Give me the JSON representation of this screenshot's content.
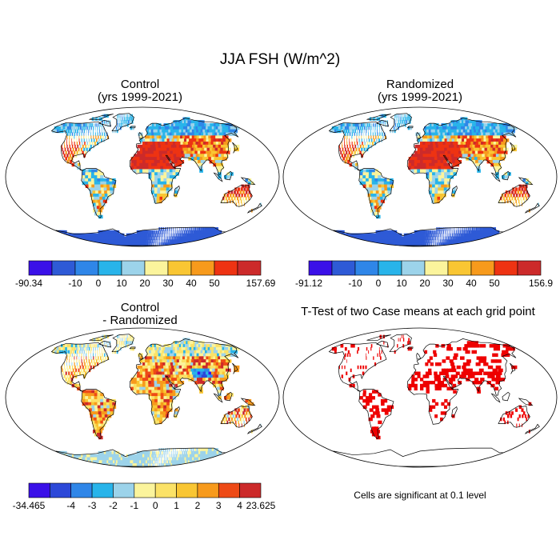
{
  "title": "JJA FSH (W/m^2)",
  "panels": [
    {
      "title_line1": "Control",
      "title_line2": "(yrs 1999-2021)",
      "kind": "field"
    },
    {
      "title_line1": "Randomized",
      "title_line2": "(yrs 1999-2021)",
      "kind": "field"
    },
    {
      "title_line1": "Control",
      "title_line2": "- Randomized",
      "kind": "difference"
    },
    {
      "title_line1": "T-Test of two Case means at each grid point",
      "title_line2": "",
      "kind": "significance"
    }
  ],
  "colorbars": [
    {
      "min_label": "-90.34",
      "max_label": "157.69",
      "ticks": [
        "-10",
        "0",
        "10",
        "20",
        "30",
        "40",
        "50"
      ],
      "colors": [
        "#3a10e8",
        "#2e5ad6",
        "#2f86e8",
        "#28b4ea",
        "#9cd3ea",
        "#fbf49c",
        "#f9c633",
        "#f79a1c",
        "#ee3312",
        "#cc2a2a"
      ]
    },
    {
      "min_label": "-91.12",
      "max_label": "156.9",
      "ticks": [
        "-10",
        "0",
        "10",
        "20",
        "30",
        "40",
        "50"
      ],
      "colors": [
        "#3a10e8",
        "#2e5ad6",
        "#2f86e8",
        "#28b4ea",
        "#9cd3ea",
        "#fbf49c",
        "#f9c633",
        "#f79a1c",
        "#ee3312",
        "#cc2a2a"
      ]
    },
    {
      "min_label": "-34.465",
      "max_label": "23.625",
      "ticks": [
        "-4",
        "-3",
        "-2",
        "-1",
        "0",
        "1",
        "2",
        "3",
        "4"
      ],
      "colors": [
        "#3a10e8",
        "#2c48d8",
        "#2f86e8",
        "#28b4ea",
        "#9cd3ea",
        "#fbf49c",
        "#fbe267",
        "#f9c633",
        "#f79a1c",
        "#ee4a16",
        "#cc2a2a"
      ]
    }
  ],
  "significance_note": "Cells are significant at 0.1 level",
  "significance_color": "#ee0000",
  "ocean_color": "#ffffff"
}
